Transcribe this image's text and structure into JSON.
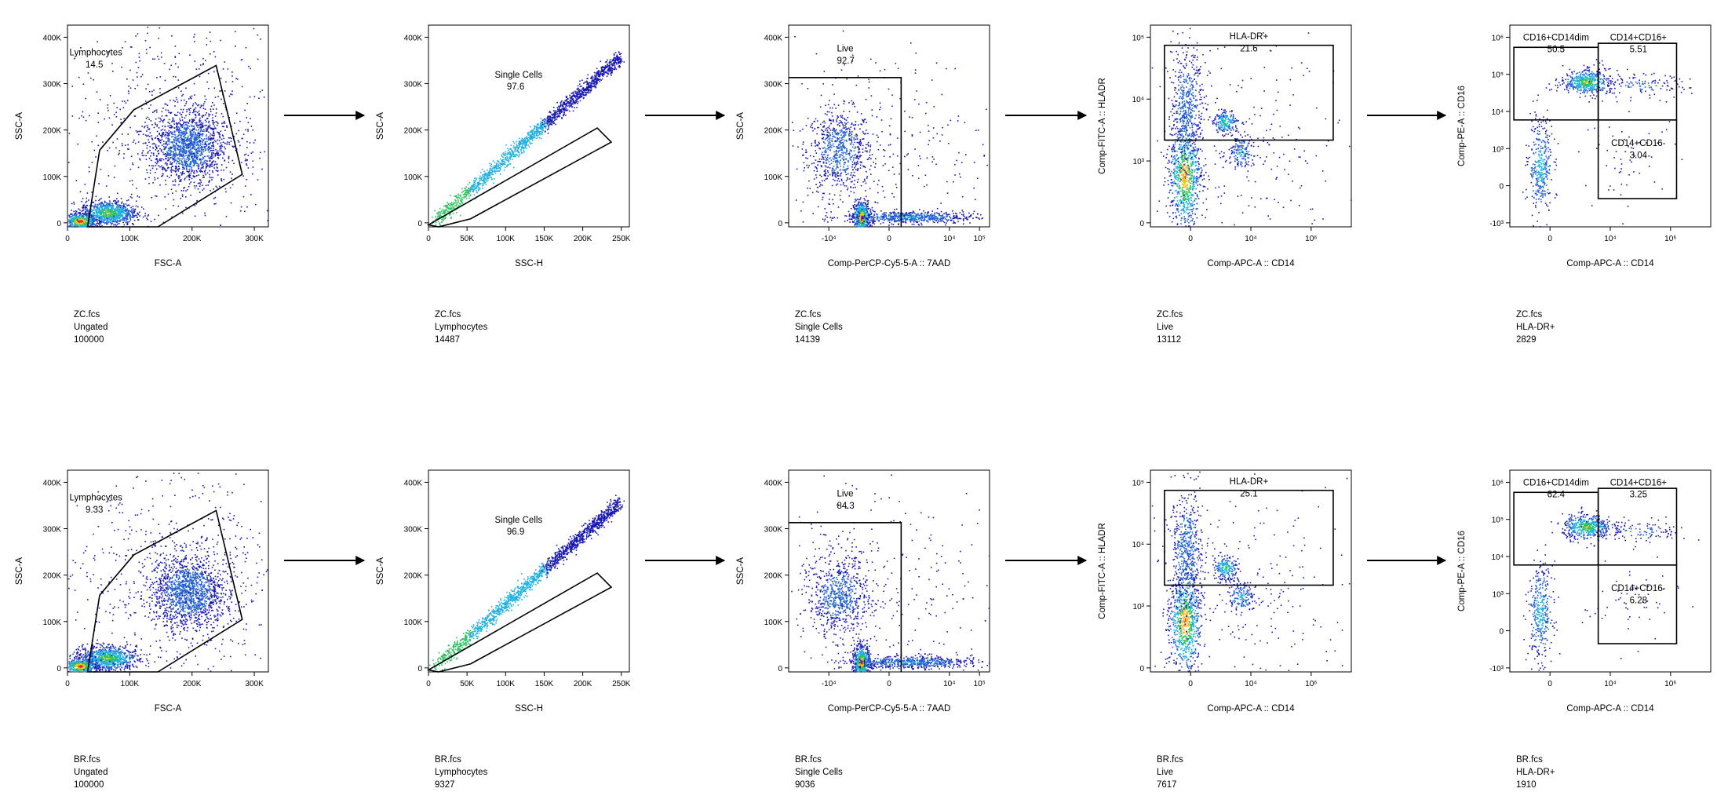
{
  "chart_data": [
    {
      "type": "scatter",
      "row": 0,
      "col": 0,
      "xlabel": "FSC-A",
      "ylabel": "SSC-A",
      "x_ticks": [
        "0",
        "100K",
        "200K",
        "300K"
      ],
      "y_ticks": [
        "0",
        "100K",
        "200K",
        "300K",
        "400K"
      ],
      "gates": [
        {
          "name": "Lymphocytes",
          "value": "14.5"
        }
      ],
      "caption": {
        "file": "ZC.fcs",
        "parent": "Ungated",
        "count": "100000"
      }
    },
    {
      "type": "scatter",
      "row": 0,
      "col": 1,
      "xlabel": "SSC-H",
      "ylabel": "SSC-A",
      "x_ticks": [
        "0",
        "50K",
        "100K",
        "150K",
        "200K",
        "250K"
      ],
      "y_ticks": [
        "0",
        "100K",
        "200K",
        "300K",
        "400K"
      ],
      "gates": [
        {
          "name": "Single Cells",
          "value": "97.6"
        }
      ],
      "caption": {
        "file": "ZC.fcs",
        "parent": "Lymphocytes",
        "count": "14487"
      }
    },
    {
      "type": "scatter",
      "row": 0,
      "col": 2,
      "xlabel": "Comp-PerCP-Cy5-5-A :: 7AAD",
      "ylabel": "SSC-A",
      "x_ticks": [
        "-10⁴",
        "0",
        "10⁴",
        "10⁵"
      ],
      "y_ticks": [
        "0",
        "100K",
        "200K",
        "300K",
        "400K"
      ],
      "gates": [
        {
          "name": "Live",
          "value": "92.7"
        }
      ],
      "caption": {
        "file": "ZC.fcs",
        "parent": "Single Cells",
        "count": "14139"
      }
    },
    {
      "type": "scatter",
      "row": 0,
      "col": 3,
      "xlabel": "Comp-APC-A :: CD14",
      "ylabel": "Comp-FITC-A :: HLADR",
      "x_ticks": [
        "0",
        "10⁴",
        "10⁶"
      ],
      "y_ticks": [
        "0",
        "10³",
        "10⁴",
        "10⁵"
      ],
      "gates": [
        {
          "name": "HLA-DR+",
          "value": "21.6"
        }
      ],
      "caption": {
        "file": "ZC.fcs",
        "parent": "Live",
        "count": "13112"
      }
    },
    {
      "type": "scatter",
      "row": 0,
      "col": 4,
      "xlabel": "Comp-APC-A :: CD14",
      "ylabel": "Comp-PE-A :: CD16",
      "x_ticks": [
        "0",
        "10⁴",
        "10⁶"
      ],
      "y_ticks": [
        "-10³",
        "0",
        "10³",
        "10⁴",
        "10⁵",
        "10⁶"
      ],
      "gates": [
        {
          "name": "CD16+CD14dim",
          "value": "50.5"
        },
        {
          "name": "CD14+CD16+",
          "value": "5.51"
        },
        {
          "name": "CD14+CD16-",
          "value": "3.04"
        }
      ],
      "caption": {
        "file": "ZC.fcs",
        "parent": "HLA-DR+",
        "count": "2829"
      }
    },
    {
      "type": "scatter",
      "row": 1,
      "col": 0,
      "xlabel": "FSC-A",
      "ylabel": "SSC-A",
      "x_ticks": [
        "0",
        "100K",
        "200K",
        "300K"
      ],
      "y_ticks": [
        "0",
        "100K",
        "200K",
        "300K",
        "400K"
      ],
      "gates": [
        {
          "name": "Lymphocytes",
          "value": "9.33"
        }
      ],
      "caption": {
        "file": "BR.fcs",
        "parent": "Ungated",
        "count": "100000"
      }
    },
    {
      "type": "scatter",
      "row": 1,
      "col": 1,
      "xlabel": "SSC-H",
      "ylabel": "SSC-A",
      "x_ticks": [
        "0",
        "50K",
        "100K",
        "150K",
        "200K",
        "250K"
      ],
      "y_ticks": [
        "0",
        "100K",
        "200K",
        "300K",
        "400K"
      ],
      "gates": [
        {
          "name": "Single Cells",
          "value": "96.9"
        }
      ],
      "caption": {
        "file": "BR.fcs",
        "parent": "Lymphocytes",
        "count": "9327"
      }
    },
    {
      "type": "scatter",
      "row": 1,
      "col": 2,
      "xlabel": "Comp-PerCP-Cy5-5-A :: 7AAD",
      "ylabel": "SSC-A",
      "x_ticks": [
        "-10⁴",
        "0",
        "10⁴",
        "10⁵"
      ],
      "y_ticks": [
        "0",
        "100K",
        "200K",
        "300K",
        "400K"
      ],
      "gates": [
        {
          "name": "Live",
          "value": "84.3"
        }
      ],
      "caption": {
        "file": "BR.fcs",
        "parent": "Single Cells",
        "count": "9036"
      }
    },
    {
      "type": "scatter",
      "row": 1,
      "col": 3,
      "xlabel": "Comp-APC-A :: CD14",
      "ylabel": "Comp-FITC-A :: HLADR",
      "x_ticks": [
        "0",
        "10⁴",
        "10⁶"
      ],
      "y_ticks": [
        "0",
        "10³",
        "10⁴",
        "10⁵"
      ],
      "gates": [
        {
          "name": "HLA-DR+",
          "value": "25.1"
        }
      ],
      "caption": {
        "file": "BR.fcs",
        "parent": "Live",
        "count": "7617"
      }
    },
    {
      "type": "scatter",
      "row": 1,
      "col": 4,
      "xlabel": "Comp-APC-A :: CD14",
      "ylabel": "Comp-PE-A :: CD16",
      "x_ticks": [
        "0",
        "10⁴",
        "10⁶"
      ],
      "y_ticks": [
        "-10³",
        "0",
        "10³",
        "10⁴",
        "10⁵",
        "10⁶"
      ],
      "gates": [
        {
          "name": "CD16+CD14dim",
          "value": "62.4"
        },
        {
          "name": "CD14+CD16+",
          "value": "3.25"
        },
        {
          "name": "CD14+CD16-",
          "value": "6.28"
        }
      ],
      "caption": {
        "file": "BR.fcs",
        "parent": "HLA-DR+",
        "count": "1910"
      }
    }
  ],
  "colors": {
    "low": "#2020c0",
    "mid": "#20b0e0",
    "high": "#e02020",
    "axis": "#000000"
  }
}
